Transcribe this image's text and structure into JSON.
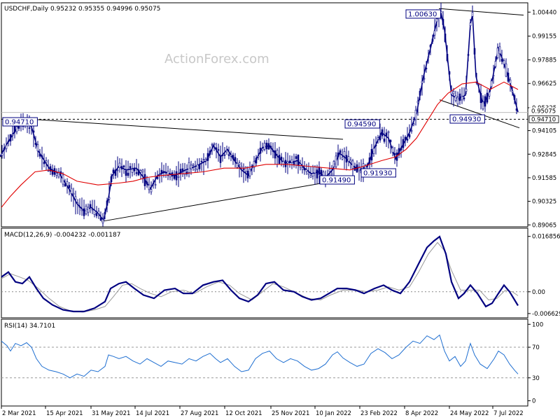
{
  "chart_data": [
    {
      "type": "candlestick",
      "symbol_line": "USDCHF,Daily  0.95232 0.95355 0.94996 0.95075",
      "watermark": "ActionForex.com",
      "y_ticks": [
        "1.00440",
        "0.99155",
        "0.97885",
        "0.96625",
        "0.95325",
        "0.94105",
        "0.92845",
        "0.91585",
        "0.90325",
        "0.89065"
      ],
      "ylim": [
        0.89,
        1.009
      ],
      "current_price": "0.95075",
      "level_label": "0.94710",
      "annotations": [
        "1.00630",
        "0.94710",
        "0.94590",
        "0.94930",
        "0.91930",
        "0.91490"
      ],
      "x_ticks": [
        "2 Mar 2021",
        "15 Apr 2021",
        "31 May 2021",
        "14 Jul 2021",
        "27 Aug 2021",
        "12 Oct 2021",
        "25 Nov 2021",
        "10 Jan 2022",
        "23 Feb 2022",
        "8 Apr 2022",
        "24 May 2022",
        "7 Jul 2022"
      ],
      "price_path": [
        [
          0,
          0.927
        ],
        [
          10,
          0.934
        ],
        [
          20,
          0.94
        ],
        [
          30,
          0.945
        ],
        [
          40,
          0.945
        ],
        [
          45,
          0.943
        ],
        [
          55,
          0.93
        ],
        [
          70,
          0.921
        ],
        [
          85,
          0.918
        ],
        [
          100,
          0.909
        ],
        [
          110,
          0.902
        ],
        [
          120,
          0.898
        ],
        [
          130,
          0.9
        ],
        [
          140,
          0.897
        ],
        [
          148,
          0.893
        ],
        [
          155,
          0.905
        ],
        [
          160,
          0.917
        ],
        [
          170,
          0.922
        ],
        [
          180,
          0.92
        ],
        [
          195,
          0.921
        ],
        [
          205,
          0.916
        ],
        [
          215,
          0.91
        ],
        [
          225,
          0.917
        ],
        [
          235,
          0.919
        ],
        [
          250,
          0.917
        ],
        [
          265,
          0.92
        ],
        [
          280,
          0.922
        ],
        [
          295,
          0.925
        ],
        [
          305,
          0.933
        ],
        [
          315,
          0.927
        ],
        [
          325,
          0.931
        ],
        [
          335,
          0.925
        ],
        [
          345,
          0.92
        ],
        [
          355,
          0.917
        ],
        [
          365,
          0.925
        ],
        [
          375,
          0.932
        ],
        [
          385,
          0.933
        ],
        [
          395,
          0.928
        ],
        [
          405,
          0.924
        ],
        [
          415,
          0.924
        ],
        [
          425,
          0.925
        ],
        [
          435,
          0.921
        ],
        [
          445,
          0.918
        ],
        [
          455,
          0.919
        ],
        [
          465,
          0.916
        ],
        [
          475,
          0.92
        ],
        [
          485,
          0.929
        ],
        [
          495,
          0.926
        ],
        [
          505,
          0.922
        ],
        [
          515,
          0.92
        ],
        [
          525,
          0.922
        ],
        [
          535,
          0.932
        ],
        [
          545,
          0.94
        ],
        [
          555,
          0.937
        ],
        [
          565,
          0.926
        ],
        [
          575,
          0.933
        ],
        [
          585,
          0.94
        ],
        [
          595,
          0.95
        ],
        [
          605,
          0.97
        ],
        [
          615,
          0.985
        ],
        [
          625,
          1.001
        ],
        [
          630,
          1.004
        ],
        [
          635,
          0.995
        ],
        [
          645,
          0.96
        ],
        [
          655,
          0.958
        ],
        [
          665,
          0.96
        ],
        [
          672,
          0.998
        ],
        [
          675,
          1.003
        ],
        [
          680,
          0.97
        ],
        [
          690,
          0.955
        ],
        [
          700,
          0.962
        ],
        [
          712,
          0.985
        ],
        [
          720,
          0.977
        ],
        [
          730,
          0.965
        ],
        [
          740,
          0.951
        ]
      ],
      "ma_path": [
        [
          2,
          0.9
        ],
        [
          15,
          0.906
        ],
        [
          30,
          0.912
        ],
        [
          50,
          0.919
        ],
        [
          70,
          0.92
        ],
        [
          90,
          0.918
        ],
        [
          110,
          0.914
        ],
        [
          140,
          0.912
        ],
        [
          170,
          0.913
        ],
        [
          190,
          0.914
        ],
        [
          210,
          0.916
        ],
        [
          230,
          0.917
        ],
        [
          260,
          0.918
        ],
        [
          290,
          0.919
        ],
        [
          320,
          0.921
        ],
        [
          350,
          0.921
        ],
        [
          380,
          0.923
        ],
        [
          410,
          0.923
        ],
        [
          440,
          0.922
        ],
        [
          470,
          0.921
        ],
        [
          500,
          0.92
        ],
        [
          520,
          0.922
        ],
        [
          545,
          0.925
        ],
        [
          565,
          0.927
        ],
        [
          580,
          0.931
        ],
        [
          595,
          0.937
        ],
        [
          610,
          0.946
        ],
        [
          625,
          0.955
        ],
        [
          640,
          0.961
        ],
        [
          660,
          0.966
        ],
        [
          680,
          0.967
        ],
        [
          700,
          0.963
        ],
        [
          720,
          0.967
        ],
        [
          740,
          0.963
        ]
      ],
      "trendlines": [
        {
          "name": "upper-channel",
          "points": [
            [
              45,
              0.9471
            ],
            [
              490,
              0.9364
            ]
          ]
        },
        {
          "name": "lower-channel",
          "points": [
            [
              145,
              0.8925
            ],
            [
              490,
              0.9149
            ]
          ]
        },
        {
          "name": "top-resistance",
          "points": [
            [
              627,
              1.0063
            ],
            [
              748,
              1.0028
            ]
          ]
        },
        {
          "name": "lower-support",
          "points": [
            [
              628,
              0.9575
            ],
            [
              742,
              0.9425
            ]
          ]
        }
      ],
      "hline": 0.9471
    },
    {
      "type": "line",
      "title": "MACD(12,26,9) -0.004232 -0.001187",
      "y_ticks": [
        "0.016856",
        "0.00",
        "-0.006629"
      ],
      "ylim": [
        -0.0075,
        0.0185
      ],
      "macd_path": [
        [
          2,
          0.0045
        ],
        [
          12,
          0.006
        ],
        [
          22,
          0.003
        ],
        [
          32,
          0.0025
        ],
        [
          42,
          0.0045
        ],
        [
          52,
          0.001
        ],
        [
          62,
          -0.002
        ],
        [
          75,
          -0.004
        ],
        [
          90,
          -0.0055
        ],
        [
          105,
          -0.006
        ],
        [
          120,
          -0.006
        ],
        [
          135,
          -0.005
        ],
        [
          150,
          -0.003
        ],
        [
          158,
          0.001
        ],
        [
          170,
          0.0025
        ],
        [
          180,
          0.003
        ],
        [
          192,
          0.001
        ],
        [
          205,
          -0.001
        ],
        [
          220,
          -0.002
        ],
        [
          235,
          0.0005
        ],
        [
          250,
          0.001
        ],
        [
          262,
          -0.0005
        ],
        [
          275,
          -0.0005
        ],
        [
          290,
          0.002
        ],
        [
          305,
          0.003
        ],
        [
          318,
          0.0035
        ],
        [
          330,
          0.0005
        ],
        [
          342,
          -0.002
        ],
        [
          355,
          -0.003
        ],
        [
          368,
          -0.001
        ],
        [
          380,
          0.0025
        ],
        [
          392,
          0.003
        ],
        [
          405,
          0.0005
        ],
        [
          420,
          0.0
        ],
        [
          432,
          -0.0015
        ],
        [
          445,
          -0.0025
        ],
        [
          458,
          -0.002
        ],
        [
          470,
          -0.0005
        ],
        [
          482,
          0.001
        ],
        [
          495,
          0.001
        ],
        [
          508,
          0.0005
        ],
        [
          520,
          -0.0005
        ],
        [
          535,
          0.001
        ],
        [
          548,
          0.002
        ],
        [
          560,
          0.0005
        ],
        [
          572,
          -0.0005
        ],
        [
          585,
          0.003
        ],
        [
          598,
          0.0085
        ],
        [
          610,
          0.0135
        ],
        [
          620,
          0.0155
        ],
        [
          628,
          0.0168
        ],
        [
          637,
          0.0115
        ],
        [
          645,
          0.003
        ],
        [
          655,
          -0.002
        ],
        [
          663,
          -0.0005
        ],
        [
          672,
          0.002
        ],
        [
          682,
          -0.0005
        ],
        [
          694,
          -0.0045
        ],
        [
          703,
          -0.0035
        ],
        [
          712,
          -0.0005
        ],
        [
          720,
          0.002
        ],
        [
          728,
          0.0
        ],
        [
          740,
          -0.0042
        ]
      ],
      "signal_path": [
        [
          2,
          0.004
        ],
        [
          15,
          0.0055
        ],
        [
          28,
          0.0045
        ],
        [
          40,
          0.0035
        ],
        [
          55,
          0.001
        ],
        [
          70,
          -0.002
        ],
        [
          85,
          -0.0045
        ],
        [
          100,
          -0.0058
        ],
        [
          118,
          -0.0062
        ],
        [
          135,
          -0.0055
        ],
        [
          150,
          -0.0045
        ],
        [
          162,
          -0.0015
        ],
        [
          175,
          0.002
        ],
        [
          188,
          0.0025
        ],
        [
          200,
          0.001
        ],
        [
          215,
          -0.0005
        ],
        [
          230,
          -0.0015
        ],
        [
          245,
          0.0
        ],
        [
          262,
          0.0005
        ],
        [
          278,
          -0.0005
        ],
        [
          295,
          0.0015
        ],
        [
          312,
          0.003
        ],
        [
          328,
          0.002
        ],
        [
          342,
          -0.0005
        ],
        [
          360,
          -0.0025
        ],
        [
          375,
          0.0
        ],
        [
          390,
          0.0025
        ],
        [
          405,
          0.0015
        ],
        [
          420,
          0.0
        ],
        [
          440,
          -0.002
        ],
        [
          458,
          -0.0025
        ],
        [
          472,
          -0.001
        ],
        [
          490,
          0.0005
        ],
        [
          510,
          0.0005
        ],
        [
          525,
          0.0
        ],
        [
          540,
          0.0005
        ],
        [
          555,
          0.0015
        ],
        [
          570,
          0.0005
        ],
        [
          585,
          0.0015
        ],
        [
          598,
          0.006
        ],
        [
          612,
          0.0115
        ],
        [
          625,
          0.015
        ],
        [
          635,
          0.0125
        ],
        [
          645,
          0.0065
        ],
        [
          658,
          0.0005
        ],
        [
          672,
          0.0005
        ],
        [
          685,
          0.0005
        ],
        [
          698,
          -0.0025
        ],
        [
          710,
          -0.002
        ],
        [
          722,
          0.0005
        ],
        [
          732,
          0.0
        ],
        [
          740,
          -0.0012
        ]
      ]
    },
    {
      "type": "line",
      "title": "RSI(14) 34.7101",
      "y_ticks": [
        "100",
        "70",
        "30",
        "0"
      ],
      "ylim": [
        -5,
        103
      ],
      "levels": [
        70,
        30
      ],
      "rsi_path": [
        [
          2,
          78
        ],
        [
          10,
          72
        ],
        [
          15,
          65
        ],
        [
          22,
          75
        ],
        [
          30,
          72
        ],
        [
          38,
          76
        ],
        [
          45,
          70
        ],
        [
          52,
          55
        ],
        [
          60,
          45
        ],
        [
          70,
          40
        ],
        [
          80,
          38
        ],
        [
          90,
          35
        ],
        [
          100,
          30
        ],
        [
          110,
          35
        ],
        [
          120,
          32
        ],
        [
          130,
          40
        ],
        [
          140,
          38
        ],
        [
          150,
          45
        ],
        [
          155,
          60
        ],
        [
          162,
          58
        ],
        [
          170,
          55
        ],
        [
          180,
          58
        ],
        [
          190,
          52
        ],
        [
          200,
          48
        ],
        [
          210,
          55
        ],
        [
          220,
          50
        ],
        [
          230,
          45
        ],
        [
          240,
          52
        ],
        [
          250,
          50
        ],
        [
          260,
          48
        ],
        [
          270,
          55
        ],
        [
          280,
          52
        ],
        [
          290,
          58
        ],
        [
          300,
          62
        ],
        [
          308,
          55
        ],
        [
          315,
          50
        ],
        [
          325,
          55
        ],
        [
          335,
          45
        ],
        [
          345,
          38
        ],
        [
          355,
          40
        ],
        [
          365,
          55
        ],
        [
          375,
          62
        ],
        [
          385,
          65
        ],
        [
          395,
          55
        ],
        [
          405,
          50
        ],
        [
          415,
          55
        ],
        [
          425,
          52
        ],
        [
          435,
          45
        ],
        [
          445,
          40
        ],
        [
          455,
          42
        ],
        [
          465,
          48
        ],
        [
          475,
          60
        ],
        [
          482,
          64
        ],
        [
          490,
          56
        ],
        [
          500,
          50
        ],
        [
          510,
          45
        ],
        [
          520,
          48
        ],
        [
          530,
          62
        ],
        [
          540,
          68
        ],
        [
          550,
          63
        ],
        [
          560,
          55
        ],
        [
          570,
          60
        ],
        [
          580,
          70
        ],
        [
          590,
          78
        ],
        [
          600,
          75
        ],
        [
          610,
          85
        ],
        [
          620,
          80
        ],
        [
          628,
          86
        ],
        [
          635,
          65
        ],
        [
          642,
          52
        ],
        [
          650,
          58
        ],
        [
          658,
          45
        ],
        [
          665,
          52
        ],
        [
          672,
          75
        ],
        [
          678,
          60
        ],
        [
          686,
          48
        ],
        [
          696,
          42
        ],
        [
          706,
          55
        ],
        [
          712,
          65
        ],
        [
          720,
          60
        ],
        [
          728,
          48
        ],
        [
          735,
          40
        ],
        [
          740,
          35
        ]
      ]
    }
  ]
}
